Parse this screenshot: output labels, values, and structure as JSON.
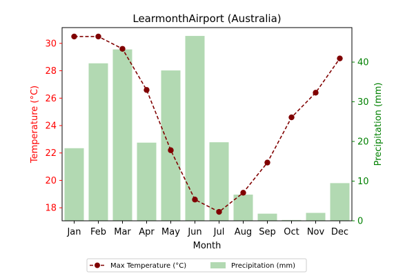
{
  "chart_data": {
    "type": "bar+line",
    "title": "LearmonthAirport (Australia)",
    "xlabel": "Month",
    "ylabel_left": "Temperature (°C)",
    "ylabel_right": "Precipitation (mm)",
    "categories": [
      "Jan",
      "Feb",
      "Mar",
      "Apr",
      "May",
      "Jun",
      "Jul",
      "Aug",
      "Sep",
      "Oct",
      "Nov",
      "Dec"
    ],
    "left_axis": {
      "min": 17.05,
      "max": 31.15,
      "ticks": [
        18,
        20,
        22,
        24,
        26,
        28,
        30
      ]
    },
    "right_axis": {
      "min": 0,
      "max": 48.7,
      "ticks": [
        0,
        10,
        20,
        30,
        40
      ]
    },
    "series": [
      {
        "name": "Max Temperature (°C)",
        "kind": "line",
        "axis": "left",
        "values": [
          30.5,
          30.5,
          29.6,
          26.6,
          22.2,
          18.6,
          17.7,
          19.1,
          21.3,
          24.6,
          26.4,
          28.9
        ]
      },
      {
        "name": "Precipitation (mm)",
        "kind": "bar",
        "axis": "right",
        "values": [
          18.3,
          39.7,
          43.2,
          19.7,
          37.9,
          46.6,
          19.8,
          6.6,
          1.8,
          0.2,
          2.0,
          9.5
        ]
      }
    ],
    "colors": {
      "temperature": "#800000",
      "precip": "#b2d9b2",
      "left_axis": "#ff0000",
      "right_axis": "#008000"
    },
    "legend_position": "bottom-center",
    "grid": false
  }
}
